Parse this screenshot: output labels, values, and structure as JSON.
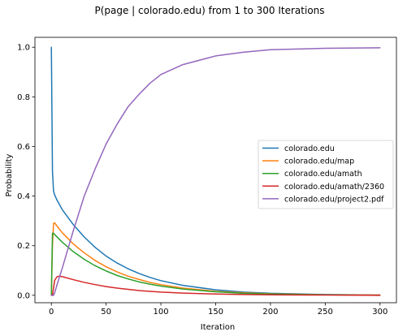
{
  "chart_data": {
    "type": "line",
    "title": "P(page | colorado.edu) from 1 to 300 Iterations",
    "xlabel": "Iteration",
    "ylabel": "Probability",
    "xlim": [
      -15,
      315
    ],
    "ylim": [
      -0.03,
      1.04
    ],
    "xticks": [
      0,
      50,
      100,
      150,
      200,
      250,
      300
    ],
    "yticks": [
      0.0,
      0.2,
      0.4,
      0.6,
      0.8,
      1.0
    ],
    "grid": false,
    "legend_position": "center-right",
    "series": [
      {
        "name": "colorado.edu",
        "color": "#1f77b4",
        "x": [
          0,
          1,
          2,
          3,
          5,
          10,
          20,
          30,
          40,
          50,
          60,
          70,
          80,
          90,
          100,
          120,
          150,
          175,
          200,
          250,
          300
        ],
        "y": [
          1.0,
          0.5,
          0.42,
          0.405,
          0.385,
          0.345,
          0.285,
          0.235,
          0.193,
          0.158,
          0.13,
          0.107,
          0.088,
          0.072,
          0.059,
          0.04,
          0.022,
          0.013,
          0.008,
          0.003,
          0.001
        ]
      },
      {
        "name": "colorado.edu/map",
        "color": "#ff7f0e",
        "x": [
          0,
          1,
          2,
          3,
          5,
          10,
          20,
          30,
          40,
          50,
          60,
          70,
          80,
          90,
          100,
          120,
          150,
          175,
          200,
          250,
          300
        ],
        "y": [
          0.0,
          0.2,
          0.29,
          0.292,
          0.28,
          0.252,
          0.207,
          0.171,
          0.14,
          0.115,
          0.094,
          0.077,
          0.064,
          0.052,
          0.043,
          0.029,
          0.016,
          0.01,
          0.006,
          0.002,
          0.001
        ]
      },
      {
        "name": "colorado.edu/amath",
        "color": "#2ca02c",
        "x": [
          0,
          1,
          2,
          3,
          5,
          10,
          20,
          30,
          40,
          50,
          60,
          70,
          80,
          90,
          100,
          120,
          150,
          175,
          200,
          250,
          300
        ],
        "y": [
          0.0,
          0.25,
          0.25,
          0.245,
          0.236,
          0.214,
          0.176,
          0.145,
          0.119,
          0.098,
          0.08,
          0.066,
          0.054,
          0.045,
          0.037,
          0.025,
          0.014,
          0.008,
          0.005,
          0.002,
          0.0
        ]
      },
      {
        "name": "colorado.edu/amath/2360",
        "color": "#d62728",
        "x": [
          0,
          1,
          2,
          3,
          5,
          7,
          10,
          20,
          30,
          40,
          50,
          60,
          70,
          80,
          90,
          100,
          120,
          150,
          175,
          200,
          250,
          300
        ],
        "y": [
          0.0,
          0.0,
          0.03,
          0.06,
          0.074,
          0.077,
          0.075,
          0.063,
          0.052,
          0.043,
          0.035,
          0.029,
          0.024,
          0.019,
          0.016,
          0.013,
          0.009,
          0.005,
          0.003,
          0.002,
          0.001,
          0.0
        ]
      },
      {
        "name": "colorado.edu/project2.pdf",
        "color": "#9467bd",
        "x": [
          0,
          1,
          2,
          3,
          5,
          10,
          20,
          30,
          40,
          50,
          60,
          70,
          80,
          90,
          100,
          120,
          150,
          175,
          200,
          250,
          300
        ],
        "y": [
          0.0,
          0.0,
          0.0,
          0.01,
          0.04,
          0.11,
          0.26,
          0.4,
          0.51,
          0.61,
          0.69,
          0.76,
          0.81,
          0.855,
          0.89,
          0.93,
          0.965,
          0.98,
          0.99,
          0.996,
          0.998
        ]
      }
    ]
  }
}
